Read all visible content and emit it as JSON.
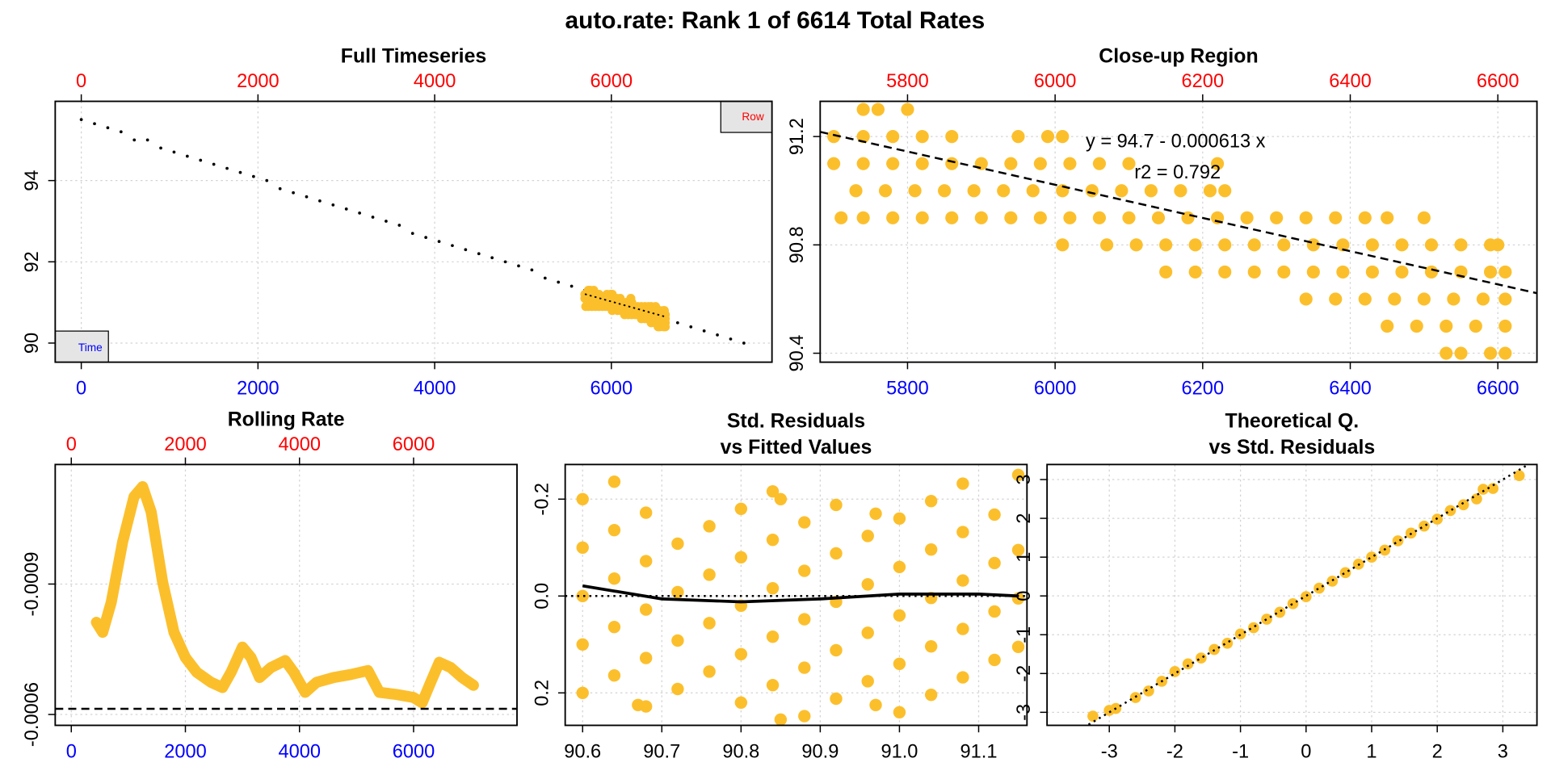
{
  "title": "auto.rate: Rank 1 of 6614 Total Rates",
  "chart_data": [
    {
      "type": "scatter",
      "title": "Full Timeseries",
      "x_legend": "Time",
      "x2_legend": "Row",
      "xlim": [
        -295,
        7818
      ],
      "xticks": [
        0,
        2000,
        4000,
        6000
      ],
      "x2lim": [
        -295,
        7818
      ],
      "x2ticks": [
        0,
        2000,
        4000,
        6000
      ],
      "ylim": [
        89.53,
        95.95
      ],
      "yticks": [
        90,
        92,
        94
      ],
      "grid": true,
      "series": [
        {
          "color": "#000000",
          "x": [
            0,
            150,
            300,
            450,
            600,
            750,
            900,
            1050,
            1200,
            1350,
            1500,
            1650,
            1800,
            1950,
            2100,
            2250,
            2400,
            2550,
            2700,
            2850,
            3000,
            3150,
            3300,
            3450,
            3600,
            3750,
            3900,
            4050,
            4200,
            4350,
            4500,
            4650,
            4800,
            4950,
            5100,
            5250,
            5400,
            5550,
            5700,
            5850,
            6000,
            6150,
            6300,
            6450,
            6600,
            6750,
            6900,
            7050,
            7200,
            7350,
            7500
          ],
          "values": [
            95.5,
            95.4,
            95.3,
            95.2,
            95.0,
            95.0,
            94.8,
            94.7,
            94.6,
            94.5,
            94.4,
            94.3,
            94.2,
            94.1,
            94.0,
            93.8,
            93.7,
            93.6,
            93.5,
            93.4,
            93.3,
            93.2,
            93.1,
            93.0,
            92.9,
            92.7,
            92.6,
            92.5,
            92.4,
            92.3,
            92.2,
            92.1,
            92.0,
            91.9,
            91.8,
            91.6,
            91.5,
            91.4,
            91.3,
            91.2,
            91.1,
            91.0,
            90.9,
            90.8,
            90.7,
            90.5,
            90.4,
            90.3,
            90.2,
            90.1,
            90.0
          ]
        }
      ]
    },
    {
      "type": "scatter",
      "title": "Close-up Region",
      "xlim": [
        5681.6,
        6653
      ],
      "xticks": [
        5800,
        6000,
        6200,
        6400,
        6600
      ],
      "x2lim": [
        5681.6,
        6653
      ],
      "x2ticks": [
        5800,
        6000,
        6200,
        6400,
        6600
      ],
      "ylim": [
        90.367,
        91.33
      ],
      "yticks": [
        90.4,
        90.8,
        91.2
      ],
      "grid": true,
      "series": [
        {
          "color": "#fcbf2c",
          "x": [
            5740,
            5760,
            5800,
            5700,
            5740,
            5780,
            5820,
            5860,
            5950,
            5990,
            6010,
            5700,
            5740,
            5780,
            5820,
            5860,
            5900,
            5940,
            5980,
            6020,
            6060,
            6100,
            6220,
            5730,
            5770,
            5810,
            5850,
            5890,
            5930,
            5970,
            6010,
            6050,
            6090,
            6130,
            6170,
            6210,
            6230,
            5710,
            5740,
            5780,
            5820,
            5860,
            5900,
            5940,
            5980,
            6020,
            6060,
            6100,
            6140,
            6180,
            6220,
            6260,
            6300,
            6340,
            6380,
            6420,
            6450,
            6500,
            6010,
            6070,
            6110,
            6150,
            6190,
            6230,
            6270,
            6310,
            6350,
            6390,
            6430,
            6470,
            6510,
            6550,
            6590,
            6600,
            6150,
            6190,
            6230,
            6270,
            6310,
            6350,
            6390,
            6430,
            6470,
            6510,
            6550,
            6590,
            6610,
            6340,
            6380,
            6420,
            6460,
            6500,
            6540,
            6580,
            6610,
            6450,
            6490,
            6530,
            6570,
            6610,
            6530,
            6550,
            6590,
            6610
          ],
          "values": [
            91.3,
            91.3,
            91.3,
            91.2,
            91.2,
            91.2,
            91.2,
            91.2,
            91.2,
            91.2,
            91.2,
            91.1,
            91.1,
            91.1,
            91.1,
            91.1,
            91.1,
            91.1,
            91.1,
            91.1,
            91.1,
            91.1,
            91.1,
            91.0,
            91.0,
            91.0,
            91.0,
            91.0,
            91.0,
            91.0,
            91.0,
            91.0,
            91.0,
            91.0,
            91.0,
            91.0,
            91.0,
            90.9,
            90.9,
            90.9,
            90.9,
            90.9,
            90.9,
            90.9,
            90.9,
            90.9,
            90.9,
            90.9,
            90.9,
            90.9,
            90.9,
            90.9,
            90.9,
            90.9,
            90.9,
            90.9,
            90.9,
            90.9,
            90.8,
            90.8,
            90.8,
            90.8,
            90.8,
            90.8,
            90.8,
            90.8,
            90.8,
            90.8,
            90.8,
            90.8,
            90.8,
            90.8,
            90.8,
            90.8,
            90.7,
            90.7,
            90.7,
            90.7,
            90.7,
            90.7,
            90.7,
            90.7,
            90.7,
            90.7,
            90.7,
            90.7,
            90.7,
            90.6,
            90.6,
            90.6,
            90.6,
            90.6,
            90.6,
            90.6,
            90.6,
            90.5,
            90.5,
            90.5,
            90.5,
            90.5,
            90.4,
            90.4,
            90.4,
            90.4
          ]
        }
      ],
      "fit": {
        "intercept": 94.7,
        "slope": -0.000613
      },
      "annotations": [
        "y = 94.7 - 0.000613 x",
        "r2 = 0.792"
      ]
    },
    {
      "type": "line",
      "title": "Rolling Rate",
      "color": "#fcbf2c",
      "xlim": [
        -282,
        7813
      ],
      "xticks": [
        0,
        2000,
        4000,
        6000
      ],
      "x2lim": [
        -282,
        7813
      ],
      "x2ticks": [
        0,
        2000,
        4000,
        6000
      ],
      "ylim": [
        -0.000575,
        -0.001175
      ],
      "yticks": [
        -0.0009,
        -0.0006
      ],
      "grid": true,
      "x": [
        440,
        550,
        700,
        900,
        1100,
        1250,
        1400,
        1600,
        1800,
        2000,
        2200,
        2450,
        2650,
        2800,
        3000,
        3150,
        3300,
        3500,
        3750,
        3900,
        4100,
        4300,
        4600,
        4900,
        5200,
        5400,
        5700,
        6000,
        6150,
        6300,
        6450,
        6650,
        6850,
        7050
      ],
      "values": [
        -0.000812,
        -0.000789,
        -0.000858,
        -0.000997,
        -0.001101,
        -0.001124,
        -0.001066,
        -0.000905,
        -0.000789,
        -0.000731,
        -0.000697,
        -0.000674,
        -0.000662,
        -0.000697,
        -0.000755,
        -0.000731,
        -0.000685,
        -0.000708,
        -0.000724,
        -0.000697,
        -0.000651,
        -0.000674,
        -0.000685,
        -0.000692,
        -0.000701,
        -0.000651,
        -0.000646,
        -0.000639,
        -0.000627,
        -0.000674,
        -0.00072,
        -0.000708,
        -0.000685,
        -0.000667
      ],
      "hline": -0.000613
    },
    {
      "type": "scatter",
      "title": [
        "Std. Residuals",
        "vs Fitted Values"
      ],
      "xlim": [
        90.578,
        91.161
      ],
      "xticks": [
        90.6,
        90.7,
        90.8,
        90.9,
        {
          "value": 91,
          "label": "91.0"
        },
        91.1
      ],
      "ylim": [
        0.267,
        -0.2715
      ],
      "yticks": [
        0.2,
        {
          "value": 0,
          "label": "0.0"
        },
        -0.2
      ],
      "grid": true,
      "series": [
        {
          "color": "#fcbf2c",
          "x": [
            90.6,
            90.64,
            90.6,
            90.64,
            90.68,
            90.6,
            90.64,
            90.68,
            90.72,
            90.76,
            90.8,
            90.84,
            90.6,
            90.64,
            90.68,
            90.72,
            90.76,
            90.8,
            90.84,
            90.88,
            90.92,
            90.6,
            90.64,
            90.68,
            90.72,
            90.76,
            90.8,
            90.84,
            90.88,
            90.92,
            90.96,
            91.0,
            91.04,
            91.08,
            90.68,
            90.72,
            90.76,
            90.8,
            90.84,
            90.88,
            90.92,
            90.96,
            91.0,
            91.04,
            91.08,
            91.12,
            90.8,
            90.84,
            90.88,
            90.92,
            90.96,
            91.0,
            91.04,
            91.08,
            91.12,
            91.15,
            90.88,
            90.92,
            90.96,
            91.0,
            91.04,
            91.08,
            91.12,
            91.15,
            91.0,
            91.04,
            91.08,
            91.12,
            91.15,
            90.67,
            90.85,
            90.97,
            90.97,
            90.85,
            91.15
          ],
          "values": [
            -0.2,
            -0.236,
            -0.1,
            -0.136,
            -0.172,
            0,
            -0.036,
            -0.072,
            -0.108,
            -0.144,
            -0.18,
            -0.216,
            0.1,
            0.064,
            0.028,
            -0.008,
            -0.044,
            -0.08,
            -0.116,
            -0.152,
            -0.188,
            0.2,
            0.164,
            0.128,
            0.092,
            0.056,
            0.02,
            -0.016,
            -0.052,
            -0.088,
            -0.124,
            -0.16,
            -0.196,
            -0.232,
            0.228,
            0.192,
            0.156,
            0.12,
            0.084,
            0.048,
            0.012,
            -0.024,
            -0.06,
            -0.096,
            -0.132,
            -0.168,
            0.22,
            0.184,
            0.148,
            0.112,
            0.076,
            0.04,
            0.004,
            -0.032,
            -0.068,
            -0.095,
            0.248,
            0.212,
            0.176,
            0.14,
            0.104,
            0.068,
            0.032,
            0.005,
            0.24,
            0.204,
            0.168,
            0.132,
            0.105,
            0.225,
            0.255,
            0.225,
            -0.17,
            -0.2,
            -0.25
          ]
        }
      ],
      "smooth": {
        "x": [
          90.6,
          90.7,
          90.8,
          90.9,
          91.0,
          91.1,
          91.15
        ],
        "values": [
          -0.021,
          0.006,
          0.012,
          0.006,
          -0.004,
          -0.004,
          0
        ]
      },
      "hline": 0
    },
    {
      "type": "scatter",
      "title": [
        "Theoretical Q.",
        "vs Std. Residuals"
      ],
      "xlim": [
        -3.949,
        3.52
      ],
      "xticks": [
        -3,
        -2,
        -1,
        0,
        1,
        2,
        3
      ],
      "ylim": [
        -3.336,
        3.388
      ],
      "yticks": [
        -3,
        -2,
        -1,
        0,
        1,
        2,
        3
      ],
      "grid": true,
      "series": [
        {
          "color": "#fcbf2c",
          "x": [
            -3.25,
            -3.0,
            -2.9,
            -2.6,
            -2.4,
            -2.2,
            -2.0,
            -1.8,
            -1.6,
            -1.4,
            -1.2,
            -1.0,
            -0.8,
            -0.6,
            -0.4,
            -0.2,
            0,
            0.2,
            0.4,
            0.6,
            0.8,
            1.0,
            1.2,
            1.4,
            1.6,
            1.8,
            2.0,
            2.2,
            2.4,
            2.6,
            2.7,
            2.85,
            3.25
          ],
          "values": [
            -3.1,
            -2.95,
            -2.9,
            -2.62,
            -2.45,
            -2.2,
            -1.95,
            -1.75,
            -1.6,
            -1.38,
            -1.22,
            -0.98,
            -0.82,
            -0.6,
            -0.42,
            -0.2,
            -0.02,
            0.2,
            0.38,
            0.6,
            0.82,
            1.0,
            1.18,
            1.42,
            1.62,
            1.8,
            1.98,
            2.2,
            2.35,
            2.5,
            2.75,
            2.77,
            3.1
          ]
        }
      ],
      "ref_line": {
        "intercept": 0,
        "slope": 1
      }
    }
  ]
}
